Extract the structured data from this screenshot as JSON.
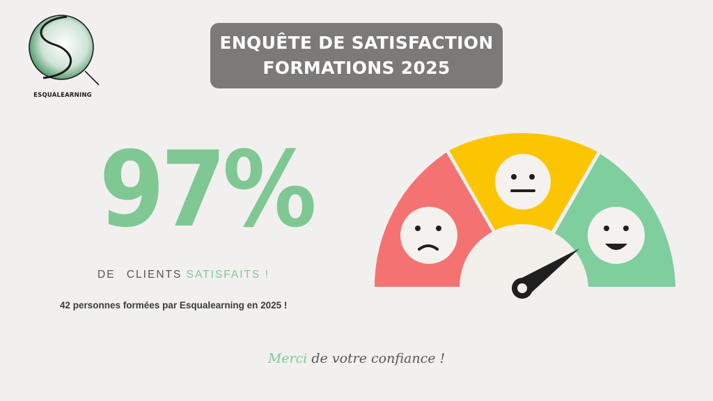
{
  "logo": {
    "text": "ESQUALEARNING"
  },
  "title": {
    "line1": "ENQUÊTE DE SATISFACTION",
    "line2": "FORMATIONS 2025"
  },
  "stat": {
    "value": "97%",
    "label_prefix": "DE",
    "label_main": "CLIENTS",
    "label_accent": "SATISFAITS !",
    "subtext": "42 personnes formées par Esqualearning en 2025 !"
  },
  "footer": {
    "accent": "Merci",
    "rest": "de votre confiance !"
  },
  "gauge": {
    "segments": [
      {
        "name": "unsatisfied",
        "face": "sad-face-icon",
        "color": "#f47372"
      },
      {
        "name": "neutral",
        "face": "neutral-face-icon",
        "color": "#fbc601"
      },
      {
        "name": "satisfied",
        "face": "happy-face-icon",
        "color": "#7fcf9e"
      }
    ],
    "hub_color": "#f3efeb",
    "needle_color": "#1f1f1f",
    "face_color": "#f5f1ee"
  },
  "colors": {
    "accent": "#7fc894",
    "title_bg": "#7c7a78",
    "background": "#f1f0ef"
  }
}
